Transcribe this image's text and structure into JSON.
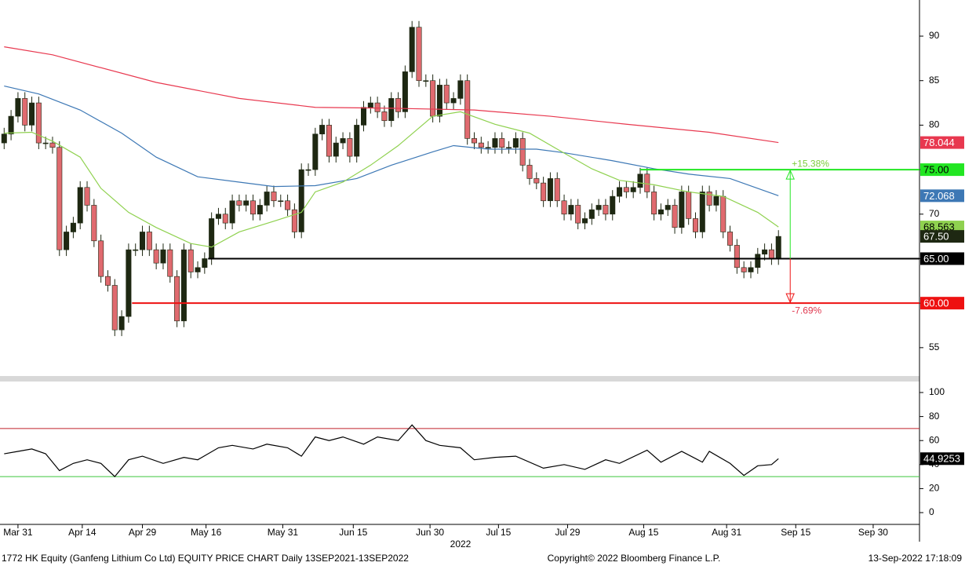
{
  "chart_data": [
    {
      "type": "candlestick",
      "open": [
        78,
        79,
        81,
        83,
        80,
        82.5,
        78,
        78,
        77.5,
        66,
        68,
        69,
        73,
        71,
        67,
        63,
        62,
        57,
        58.5,
        66,
        66,
        68,
        66,
        64.5,
        66,
        63,
        58,
        66,
        63.5,
        64,
        65,
        69.5,
        70,
        69,
        71.5,
        71,
        71.5,
        70,
        71,
        72.5,
        71.5,
        71.5,
        70.5,
        68,
        75,
        75,
        79,
        80,
        76.5,
        78,
        78.5,
        76.5,
        80,
        82,
        82.5,
        81.5,
        80.5,
        83,
        81.5,
        86,
        91,
        85,
        85,
        81,
        84.5,
        82.5,
        83,
        85,
        78.5,
        78,
        77.5,
        77.5,
        78.5,
        77.5,
        77.5,
        78.5,
        75.5,
        74,
        73.5,
        71.5,
        74,
        71.5,
        70,
        71,
        69,
        69.5,
        70.5,
        71,
        70,
        72,
        73,
        72.5,
        73,
        74.5,
        72.5,
        70,
        70.5,
        71,
        68.5,
        72.5,
        69.5,
        68,
        72.5,
        71,
        72,
        68,
        66.5,
        64,
        63.5,
        64,
        65.5,
        66,
        65
      ],
      "high": [
        79.7,
        81.7,
        83.7,
        83.7,
        83.2,
        83.2,
        78.7,
        78.7,
        78.2,
        68.7,
        69.7,
        73.7,
        73.7,
        71.7,
        67.7,
        63.7,
        62.7,
        59.2,
        66.7,
        66.7,
        68.7,
        68.7,
        66.7,
        66.7,
        66.7,
        63.7,
        66.7,
        66.7,
        64.7,
        65.7,
        70.2,
        70.7,
        70.7,
        72.2,
        72.2,
        72.2,
        72.2,
        71.7,
        73.2,
        73.2,
        72.2,
        72.2,
        71.2,
        75.7,
        75.7,
        79.7,
        80.7,
        80.7,
        78.7,
        79.2,
        79.2,
        80.7,
        82.7,
        83.2,
        83.2,
        82.2,
        83.7,
        83.7,
        86.7,
        91.7,
        91.7,
        85.7,
        85.7,
        85.2,
        85.2,
        83.7,
        85.7,
        85.7,
        79.2,
        78.7,
        78.2,
        79.2,
        79.2,
        78.2,
        79.2,
        79.2,
        76.2,
        74.7,
        74.2,
        74.7,
        74.7,
        72.2,
        71.7,
        71.7,
        70.2,
        71.2,
        71.7,
        71.7,
        72.7,
        73.7,
        73.7,
        73.7,
        75.2,
        75.2,
        73.2,
        71.2,
        71.7,
        71.7,
        73.2,
        73.2,
        70.2,
        73.2,
        73.2,
        72.7,
        72.7,
        68.7,
        67.2,
        64.7,
        64.7,
        66.2,
        66.7,
        66.7,
        68.2
      ],
      "low": [
        77.3,
        78.3,
        80.3,
        79.3,
        79.3,
        77.3,
        77.3,
        76.8,
        65.3,
        65.3,
        67.3,
        68.3,
        70.3,
        66.3,
        62.3,
        61.3,
        56.3,
        56.3,
        57.8,
        65.3,
        65.3,
        65.3,
        63.8,
        63.8,
        62.3,
        57.3,
        57.3,
        62.8,
        62.8,
        63.3,
        64.3,
        68.8,
        68.3,
        68.3,
        70.3,
        70.3,
        69.3,
        69.3,
        70.3,
        70.8,
        70.8,
        69.8,
        67.3,
        67.3,
        74.3,
        74.3,
        78.3,
        75.8,
        75.8,
        77.3,
        75.8,
        75.8,
        79.3,
        81.3,
        80.8,
        79.8,
        79.8,
        80.8,
        80.8,
        85.3,
        84.3,
        84.3,
        80.3,
        80.3,
        81.8,
        81.8,
        82.3,
        77.8,
        77.3,
        76.8,
        76.8,
        76.8,
        76.8,
        76.8,
        76.8,
        74.8,
        73.3,
        72.8,
        70.8,
        70.8,
        70.8,
        69.3,
        69.3,
        68.3,
        68.3,
        68.8,
        69.8,
        69.3,
        69.3,
        71.3,
        71.8,
        71.8,
        72.3,
        71.8,
        69.3,
        69.3,
        69.8,
        67.8,
        67.8,
        68.8,
        67.3,
        67.3,
        70.3,
        70.3,
        67.3,
        65.8,
        63.3,
        62.8,
        62.8,
        63.3,
        64.8,
        64.3,
        64.3
      ],
      "close": [
        79,
        81,
        83,
        80,
        82.5,
        78,
        78,
        77.5,
        66,
        68,
        69,
        73,
        71,
        67,
        63,
        62,
        57,
        58.5,
        66,
        66,
        68,
        66,
        64.5,
        66,
        63,
        58,
        66,
        63.5,
        64,
        65,
        69.5,
        70,
        69,
        71.5,
        71,
        71.5,
        70,
        71,
        72.5,
        71.5,
        71.5,
        70.5,
        68,
        75,
        75,
        79,
        80,
        76.5,
        78,
        78.5,
        76.5,
        80,
        82,
        82.5,
        81.5,
        80.5,
        83,
        81.5,
        86,
        91,
        85,
        85,
        81,
        84.5,
        82.5,
        83,
        85,
        78.5,
        78,
        77.5,
        77.5,
        78.5,
        77.5,
        77.5,
        78.5,
        75.5,
        74,
        73.5,
        71.5,
        74,
        71.5,
        70,
        71,
        69,
        69.5,
        70.5,
        71,
        70,
        72,
        73,
        72.5,
        73,
        74.5,
        72.5,
        70,
        70.5,
        71,
        68.5,
        72.5,
        69.5,
        68,
        72.5,
        71,
        72,
        68,
        66.5,
        64,
        63.5,
        64,
        65.5,
        66,
        65,
        67.5
      ],
      "close_label": "67.50",
      "up_color": "#1e2812",
      "down_color": "#e06a6f",
      "series": [
        {
          "color": "#e8384f",
          "x": [
            0,
            7,
            22,
            34,
            45,
            56,
            68,
            79,
            90,
            102,
            112
          ],
          "values": [
            88.8,
            87.9,
            84.8,
            83,
            82,
            81.9,
            81.7,
            81,
            80.1,
            79.2,
            78.044
          ]
        },
        {
          "color": "#3d78b5",
          "x": [
            0,
            5,
            11,
            17,
            22,
            28,
            34,
            39,
            45,
            51,
            56,
            62,
            65,
            70,
            77,
            81,
            88,
            94,
            99,
            105,
            112
          ],
          "values": [
            84.4,
            83.5,
            81.7,
            79.1,
            76.4,
            74.2,
            73.6,
            73.1,
            73.2,
            74,
            75.5,
            77,
            77.7,
            77.3,
            77.3,
            76.9,
            76,
            75.1,
            74.5,
            74,
            72.068
          ]
        },
        {
          "color": "#8fd14f",
          "x": [
            0,
            4,
            7,
            11,
            14,
            18,
            22,
            27,
            30,
            34,
            39,
            43,
            45,
            49,
            53,
            57,
            62,
            66,
            71,
            76,
            80,
            85,
            89,
            94,
            99,
            104,
            109,
            112
          ],
          "values": [
            79.1,
            79.2,
            78.2,
            76.4,
            72.9,
            70.2,
            68.5,
            66.7,
            66.3,
            68,
            69.2,
            70.2,
            72.5,
            73.6,
            75.5,
            77.7,
            81,
            81.5,
            80.1,
            79.1,
            77.3,
            75.1,
            73.8,
            73.3,
            72.5,
            72,
            70.2,
            68.563
          ]
        }
      ],
      "levels": [
        {
          "value": 75,
          "label": "75.00",
          "color": "#22e622"
        },
        {
          "value": 65,
          "label": "65.00",
          "color": "#000000"
        },
        {
          "value": 60,
          "label": "60.00",
          "color": "#ee1111"
        }
      ],
      "annotations": [
        "+15.38%",
        "-7.69%"
      ],
      "xlim": [
        -0.6,
        132.4
      ],
      "xticks": [
        {
          "value": 2,
          "label": "Mar 31"
        },
        {
          "value": 11.3,
          "label": "Apr 14"
        },
        {
          "value": 20,
          "label": "Apr 29"
        },
        {
          "value": 29.2,
          "label": "May 16"
        },
        {
          "value": 40.3,
          "label": "May 31"
        },
        {
          "value": 50.5,
          "label": "Jun 15"
        },
        {
          "value": 61.6,
          "label": "Jun 30"
        },
        {
          "value": 71.5,
          "label": "Jul 15"
        },
        {
          "value": 81.5,
          "label": "Jul 29"
        },
        {
          "value": 92.5,
          "label": "Aug 15"
        },
        {
          "value": 104.5,
          "label": "Aug 31"
        },
        {
          "value": 114.5,
          "label": "Sep 15"
        },
        {
          "value": 125.7,
          "label": "Sep 30"
        }
      ],
      "xlabel": "2022",
      "ylim": [
        51.9,
        94.06
      ],
      "yticks": [
        55,
        60,
        65,
        70,
        75,
        80,
        85,
        90
      ]
    },
    {
      "type": "line",
      "series": [
        {
          "color": "#000000",
          "x": [
            0,
            2,
            4,
            6,
            8,
            10,
            12,
            14,
            16,
            18,
            20,
            23,
            26,
            28,
            31,
            33,
            36,
            38,
            41,
            43,
            45,
            47,
            49,
            52,
            54,
            57,
            59,
            61,
            63,
            66,
            68,
            71,
            74,
            78,
            81,
            84,
            87,
            89,
            93,
            95,
            98,
            101,
            102,
            105,
            107,
            109,
            111,
            112
          ],
          "values": [
            49,
            51,
            53,
            49,
            35,
            41,
            44,
            41,
            30,
            44,
            47,
            41,
            46,
            44,
            54,
            56,
            53,
            57,
            54,
            47,
            63,
            60,
            63,
            57,
            63,
            60,
            73,
            60,
            56,
            54,
            44,
            46,
            47,
            37,
            40,
            36,
            44,
            41,
            52,
            42,
            51,
            42,
            51,
            41,
            31,
            39,
            40,
            44.9253
          ]
        }
      ],
      "levels": [
        {
          "value": 70,
          "color": "#c0202a"
        },
        {
          "value": 30,
          "color": "#3cc83c"
        }
      ],
      "xlim": [
        -0.6,
        132.4
      ],
      "ylim": [
        -9.8,
        108.5
      ],
      "yticks": [
        0,
        20,
        40,
        60,
        80,
        100
      ]
    }
  ],
  "footer": {
    "left": "1772 HK Equity (Ganfeng Lithium Co Ltd) EQUITY PRICE CHART  Daily 13SEP2021-13SEP2022",
    "center": "Copyright© 2022 Bloomberg Finance L.P.",
    "right": "13-Sep-2022 17:18:09"
  }
}
